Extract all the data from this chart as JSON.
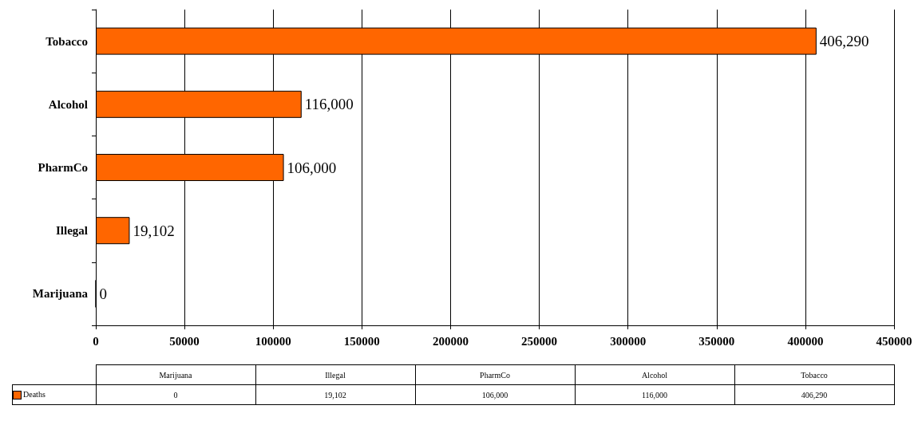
{
  "chart_data": {
    "type": "bar",
    "orientation": "horizontal",
    "categories": [
      "Tobacco",
      "Alcohol",
      "PharmCo",
      "Illegal",
      "Marijuana"
    ],
    "series": [
      {
        "name": "Deaths",
        "color": "#ff6600",
        "values": [
          406290,
          116000,
          106000,
          19102,
          0
        ],
        "value_labels": [
          "406,290",
          "116,000",
          "106,000",
          "19,102",
          "0"
        ]
      }
    ],
    "xlim": [
      0,
      450000
    ],
    "xticks": [
      0,
      50000,
      100000,
      150000,
      200000,
      250000,
      300000,
      350000,
      400000,
      450000
    ],
    "grid": "x",
    "legend": "bottom left"
  }
}
